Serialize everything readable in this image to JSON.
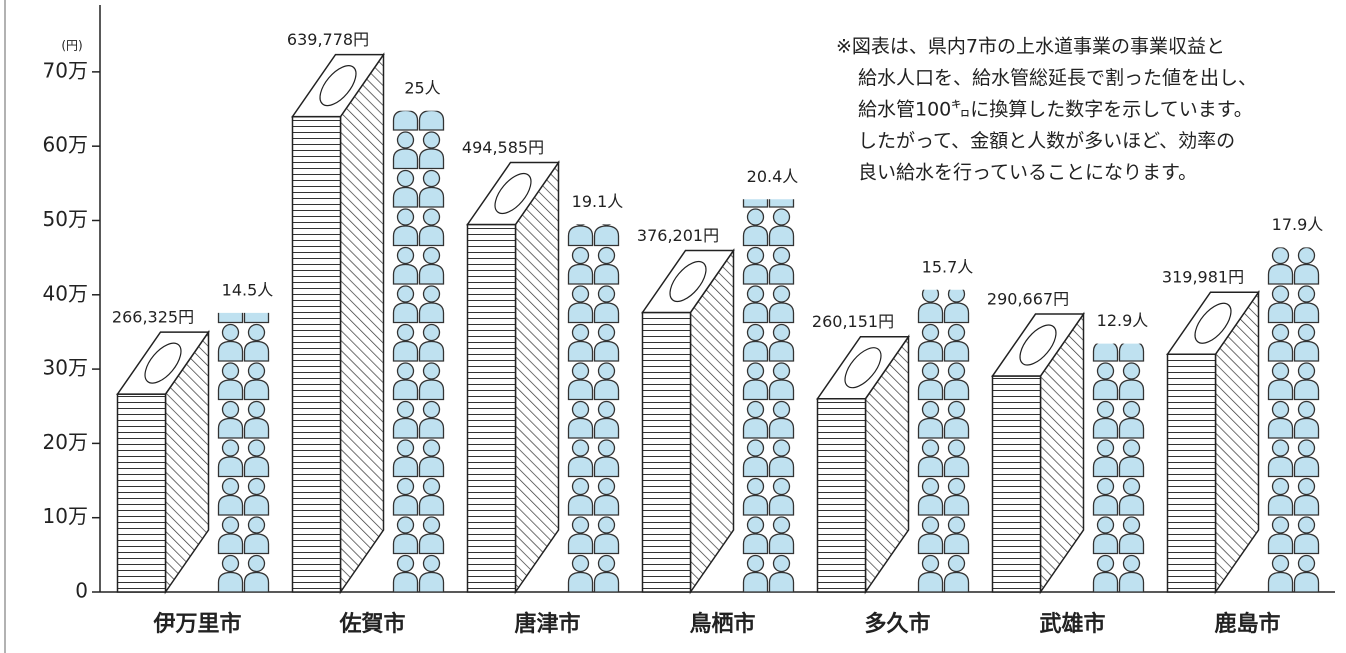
{
  "chart_data": {
    "type": "pictorial-bar",
    "y_unit_label": "(円)",
    "categories": [
      "伊万里市",
      "佐賀市",
      "唐津市",
      "鳥栖市",
      "多久市",
      "武雄市",
      "鹿島市"
    ],
    "series": [
      {
        "name": "事業収益",
        "values": [
          266325,
          639778,
          494585,
          376201,
          260151,
          290667,
          319981
        ],
        "value_labels": [
          "266,325円",
          "639,778円",
          "494,585円",
          "376,201円",
          "260,151円",
          "290,667円",
          "319,981円"
        ]
      },
      {
        "name": "給水人口",
        "color": "#bfe1f0",
        "values": [
          14.5,
          25,
          19.1,
          20.4,
          15.7,
          12.9,
          17.9
        ],
        "value_labels": [
          "14.5人",
          "25人",
          "19.1人",
          "20.4人",
          "15.7人",
          "12.9人",
          "17.9人"
        ]
      }
    ],
    "ylim": [
      0,
      790000
    ],
    "yticks": [
      0,
      {
        "value": 100000,
        "label": "10万"
      },
      {
        "value": 200000,
        "label": "20万"
      },
      {
        "value": 300000,
        "label": "30万"
      },
      {
        "value": 400000,
        "label": "40万"
      },
      {
        "value": 500000,
        "label": "50万"
      },
      {
        "value": 600000,
        "label": "60万"
      },
      {
        "value": 700000,
        "label": "70万"
      }
    ],
    "note": [
      "※図表は、県内7市の上水道事業の事業収益と",
      "給水人口を、給水管総延長で割った値を出し、",
      "給水管100㌔に換算した数字を示しています。",
      "したがって、金額と人数が多いほど、効率の",
      "良い給水を行っていることになります。"
    ]
  }
}
